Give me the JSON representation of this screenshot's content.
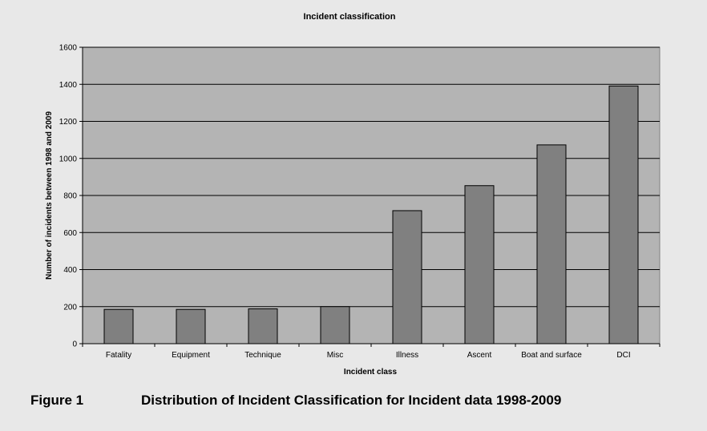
{
  "caption": {
    "number": "Figure 1",
    "text": "Distribution of Incident Classification for Incident data 1998-2009"
  },
  "chart_data": {
    "type": "bar",
    "title": "Incident classification",
    "xlabel": "Incident class",
    "ylabel": "Number of incidents between 1998 and 2009",
    "categories": [
      "Fatality",
      "Equipment",
      "Technique",
      "Misc",
      "Illness",
      "Ascent",
      "Boat and surface",
      "DCI"
    ],
    "values": [
      185,
      185,
      188,
      200,
      718,
      853,
      1073,
      1391
    ],
    "ylim": [
      0,
      1600
    ],
    "yticks": [
      0,
      200,
      400,
      600,
      800,
      1000,
      1200,
      1400,
      1600
    ],
    "grid": true,
    "legend": "none",
    "colors": {
      "plot_background": "#b4b4b4",
      "bar_fill": "#808080",
      "bar_stroke": "#000000",
      "gridline": "#000000"
    }
  }
}
